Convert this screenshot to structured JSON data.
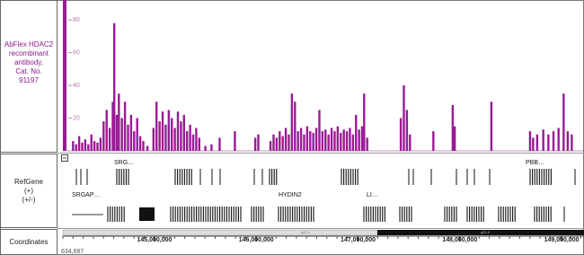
{
  "chart_data": {
    "type": "bar",
    "series": [
      {
        "name": "AbFlex HDAC2 recombinant antibody, Cat. No. 91197",
        "color": "#9a1a96",
        "x": [
          144200000,
          144230000,
          144260000,
          144290000,
          144320000,
          144350000,
          144380000,
          144410000,
          144440000,
          144470000,
          144500000,
          144530000,
          144560000,
          144590000,
          144605000,
          144630000,
          144650000,
          144680000,
          144710000,
          144740000,
          144770000,
          144800000,
          144830000,
          144860000,
          144890000,
          144930000,
          144990000,
          145020000,
          145050000,
          145080000,
          145110000,
          145140000,
          145170000,
          145200000,
          145230000,
          145260000,
          145290000,
          145320000,
          145350000,
          145380000,
          145410000,
          145440000,
          145500000,
          145560000,
          145640000,
          145790000,
          145990000,
          146020000,
          146140000,
          146170000,
          146200000,
          146230000,
          146260000,
          146290000,
          146320000,
          146350000,
          146380000,
          146410000,
          146440000,
          146470000,
          146500000,
          146530000,
          146560000,
          146590000,
          146620000,
          146650000,
          146680000,
          146710000,
          146740000,
          146770000,
          146800000,
          146830000,
          146860000,
          146890000,
          146920000,
          146950000,
          146980000,
          147010000,
          147040000,
          147060000,
          147090000,
          147420000,
          147450000,
          147480000,
          147510000,
          147740000,
          147930000,
          147950000,
          148310000,
          148690000,
          148720000,
          148760000,
          148820000,
          148870000,
          148920000,
          148970000,
          149020000,
          149060000,
          149100000
        ],
        "values": [
          6,
          4,
          9,
          5,
          7,
          4,
          10,
          6,
          5,
          8,
          18,
          25,
          14,
          30,
          78,
          22,
          35,
          20,
          30,
          16,
          22,
          12,
          20,
          9,
          6,
          3,
          14,
          30,
          18,
          24,
          16,
          25,
          20,
          14,
          24,
          18,
          22,
          12,
          16,
          10,
          14,
          8,
          3,
          4,
          8,
          12,
          8,
          10,
          6,
          10,
          8,
          12,
          9,
          14,
          10,
          35,
          30,
          12,
          14,
          10,
          15,
          12,
          11,
          14,
          25,
          12,
          13,
          10,
          14,
          12,
          15,
          11,
          13,
          12,
          14,
          10,
          22,
          13,
          15,
          35,
          8,
          20,
          40,
          25,
          10,
          12,
          28,
          15,
          30,
          12,
          8,
          10,
          13,
          10,
          12,
          14,
          35,
          12,
          10
        ]
      }
    ],
    "ylim": [
      0,
      90
    ],
    "yticks": [
      20,
      40,
      60,
      80
    ],
    "xlim": [
      144100000,
      149220000
    ],
    "xticks": [
      {
        "value": 145000000,
        "label": "145,000,000"
      },
      {
        "value": 146000000,
        "label": "146,000,000"
      },
      {
        "value": 147000000,
        "label": "147,000,000"
      },
      {
        "value": 148000000,
        "label": "148,000,000"
      },
      {
        "value": 149000000,
        "label": "149,000,000"
      }
    ],
    "gene_track_label": "RefGene (+) (+/-)",
    "genes": [
      "SRG…",
      "PBB…",
      "SRGAP…",
      "HYDIN2",
      "LI…"
    ],
    "coordinate_track_label": "Coordinates",
    "bands": [
      "q21.1",
      "q21.2"
    ],
    "position_label": "634,687"
  }
}
